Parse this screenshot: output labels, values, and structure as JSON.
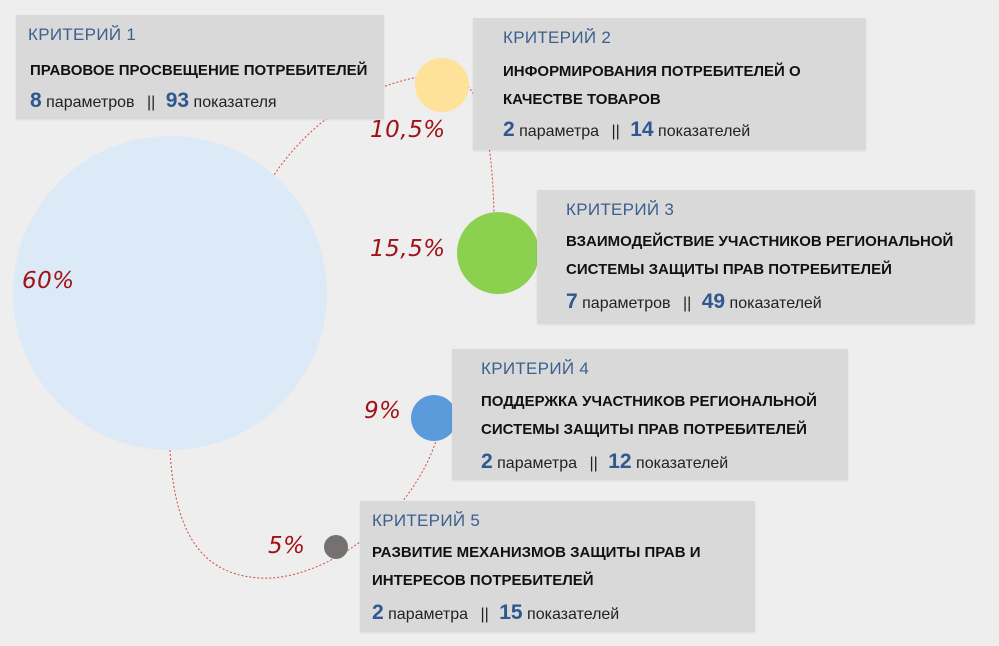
{
  "colors": {
    "big_circle": "#dce9f6",
    "c1": "#ffe29a",
    "c2": "#8cd04f",
    "c3": "#5b9bdb",
    "c4": "#767171",
    "pct_text": "#a11218",
    "accent_num": "#2f5790",
    "curve": "#d9443f"
  },
  "shares": {
    "main": "60%",
    "c1": "10,5%",
    "c2": "15,5%",
    "c3": "9%",
    "c4": "5%"
  },
  "criteria": [
    {
      "label": "КРИТЕРИЙ 1",
      "title": [
        "ПРАВОВОЕ ПРОСВЕЩЕНИЕ ПОТРЕБИТЕЛЕЙ"
      ],
      "params_num": "8",
      "params_word": "параметров",
      "sep": "||",
      "ind_num": "93",
      "ind_word": "показателя"
    },
    {
      "label": "КРИТЕРИЙ 2",
      "title": [
        "ИНФОРМИРОВАНИЯ ПОТРЕБИТЕЛЕЙ О",
        "КАЧЕСТВЕ ТОВАРОВ"
      ],
      "params_num": "2",
      "params_word": "параметра",
      "sep": "||",
      "ind_num": "14",
      "ind_word": "показателей"
    },
    {
      "label": "КРИТЕРИЙ 3",
      "title": [
        "ВЗАИМОДЕЙСТВИЕ УЧАСТНИКОВ РЕГИОНАЛЬНОЙ",
        "СИСТЕМЫ ЗАЩИТЫ  ПРАВ ПОТРЕБИТЕЛЕЙ"
      ],
      "params_num": "7",
      "params_word": "параметров",
      "sep": "||",
      "ind_num": "49",
      "ind_word": "показателей"
    },
    {
      "label": "КРИТЕРИЙ 4",
      "title": [
        "ПОДДЕРЖКА УЧАСТНИКОВ РЕГИОНАЛЬНОЙ",
        "СИСТЕМЫ ЗАЩИТЫ  ПРАВ ПОТРЕБИТЕЛЕЙ"
      ],
      "params_num": "2",
      "params_word": "параметра",
      "sep": "||",
      "ind_num": "12",
      "ind_word": "показателей"
    },
    {
      "label": "КРИТЕРИЙ 5",
      "title": [
        "РАЗВИТИЕ МЕХАНИЗМОВ ЗАЩИТЫ ПРАВ И",
        "ИНТЕРЕСОВ ПОТРЕБИТЕЛЕЙ"
      ],
      "params_num": "2",
      "params_word": "параметра",
      "sep": "||",
      "ind_num": "15",
      "ind_word": "показателей"
    }
  ]
}
